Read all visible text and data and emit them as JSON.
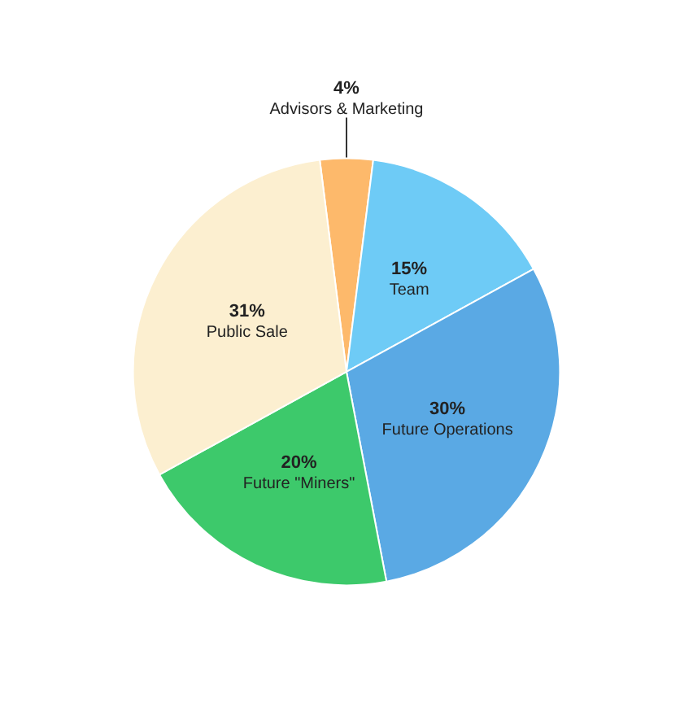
{
  "chart_data": {
    "type": "pie",
    "categories": [
      "Advisors & Marketing",
      "Team",
      "Future Operations",
      "Future \"Miners\"",
      "Public Sale"
    ],
    "values": [
      4,
      15,
      30,
      20,
      31
    ],
    "value_labels": [
      "4%",
      "15%",
      "30%",
      "20%",
      "31%"
    ],
    "colors": [
      "#fdb96b",
      "#6ecbf6",
      "#5aa9e4",
      "#3dc96b",
      "#fcefd0"
    ],
    "legend": false
  }
}
